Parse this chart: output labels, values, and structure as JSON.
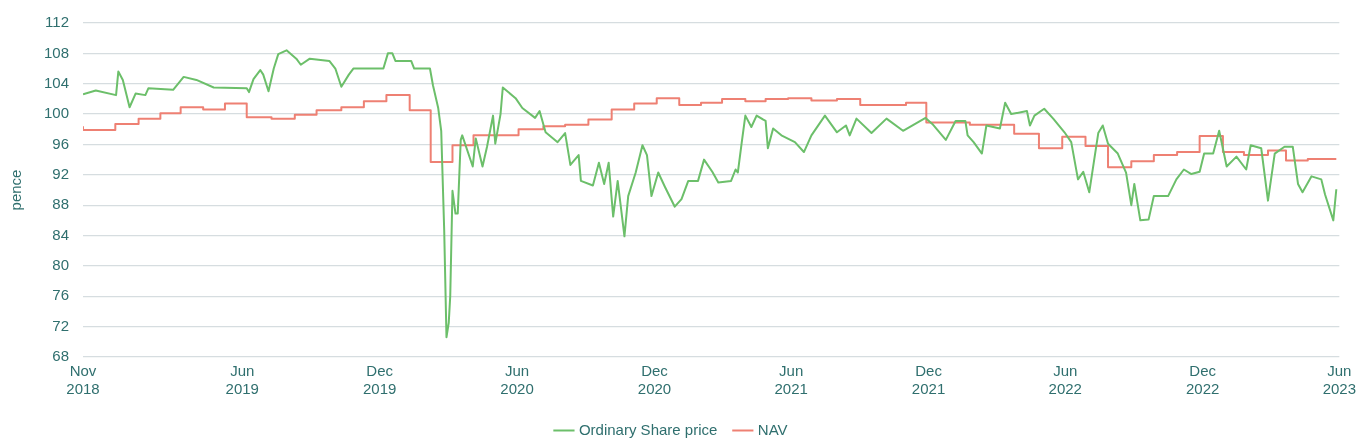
{
  "chart_data": {
    "type": "line",
    "ylabel": "pence",
    "legend": "bottom",
    "grid": "y",
    "marker": "none",
    "xlim": [
      "2018-11-01",
      "2023-06-01"
    ],
    "xticks": [
      {
        "value": "2018-11-01",
        "label": "Nov\n2018"
      },
      {
        "value": "2019-06-01",
        "label": "Jun\n2019"
      },
      {
        "value": "2019-12-01",
        "label": "Dec\n2019"
      },
      {
        "value": "2020-06-01",
        "label": "Jun\n2020"
      },
      {
        "value": "2020-12-01",
        "label": "Dec\n2020"
      },
      {
        "value": "2021-06-01",
        "label": "Jun\n2021"
      },
      {
        "value": "2021-12-01",
        "label": "Dec\n2021"
      },
      {
        "value": "2022-06-01",
        "label": "Jun\n2022"
      },
      {
        "value": "2022-12-01",
        "label": "Dec\n2022"
      },
      {
        "value": "2023-06-01",
        "label": "Jun\n2023"
      }
    ],
    "ylim": [
      68,
      112
    ],
    "yticks": [
      68,
      72,
      76,
      80,
      84,
      88,
      92,
      96,
      100,
      104,
      108,
      112
    ],
    "series": [
      {
        "name": "Ordinary Share price",
        "type": "line",
        "color": "#6cbf6a",
        "x": [
          "2018-11-01",
          "2018-11-18",
          "2018-12-15",
          "2018-12-18",
          "2018-12-24",
          "2019-01-02",
          "2019-01-10",
          "2019-01-23",
          "2019-01-27",
          "2019-03-01",
          "2019-03-15",
          "2019-04-01",
          "2019-04-24",
          "2019-06-07",
          "2019-06-10",
          "2019-06-16",
          "2019-06-25",
          "2019-06-29",
          "2019-07-06",
          "2019-07-13",
          "2019-07-19",
          "2019-07-30",
          "2019-08-12",
          "2019-08-18",
          "2019-08-30",
          "2019-09-25",
          "2019-10-03",
          "2019-10-11",
          "2019-10-21",
          "2019-10-27",
          "2019-12-06",
          "2019-12-12",
          "2019-12-18",
          "2019-12-22",
          "2020-01-12",
          "2020-01-16",
          "2020-02-06",
          "2020-02-10",
          "2020-02-17",
          "2020-02-21",
          "2020-02-25",
          "2020-02-28",
          "2020-03-02",
          "2020-03-04",
          "2020-03-07",
          "2020-03-11",
          "2020-03-14",
          "2020-03-18",
          "2020-03-20",
          "2020-04-03",
          "2020-04-07",
          "2020-04-16",
          "2020-04-22",
          "2020-04-30",
          "2020-05-03",
          "2020-05-10",
          "2020-05-13",
          "2020-05-30",
          "2020-06-08",
          "2020-06-25",
          "2020-07-01",
          "2020-07-09",
          "2020-07-25",
          "2020-08-04",
          "2020-08-11",
          "2020-08-22",
          "2020-08-25",
          "2020-09-10",
          "2020-09-18",
          "2020-09-25",
          "2020-10-01",
          "2020-10-07",
          "2020-10-13",
          "2020-10-22",
          "2020-10-27",
          "2020-11-06",
          "2020-11-15",
          "2020-11-21",
          "2020-11-27",
          "2020-12-06",
          "2020-12-15",
          "2020-12-28",
          "2021-01-06",
          "2021-01-15",
          "2021-01-28",
          "2021-02-05",
          "2021-02-16",
          "2021-02-24",
          "2021-03-13",
          "2021-03-19",
          "2021-03-22",
          "2021-03-27",
          "2021-04-01",
          "2021-04-09",
          "2021-04-16",
          "2021-04-28",
          "2021-05-01",
          "2021-05-08",
          "2021-05-19",
          "2021-06-06",
          "2021-06-18",
          "2021-06-28",
          "2021-07-16",
          "2021-08-01",
          "2021-08-13",
          "2021-08-18",
          "2021-08-27",
          "2021-09-16",
          "2021-10-06",
          "2021-10-28",
          "2021-11-27",
          "2021-12-06",
          "2021-12-24",
          "2022-01-06",
          "2022-01-19",
          "2022-01-22",
          "2022-01-30",
          "2022-02-10",
          "2022-02-16",
          "2022-03-06",
          "2022-03-13",
          "2022-03-21",
          "2022-04-11",
          "2022-04-15",
          "2022-04-21",
          "2022-05-04",
          "2022-05-16",
          "2022-05-31",
          "2022-06-09",
          "2022-06-18",
          "2022-06-25",
          "2022-07-03",
          "2022-07-09",
          "2022-07-15",
          "2022-07-21",
          "2022-07-28",
          "2022-08-10",
          "2022-08-21",
          "2022-08-28",
          "2022-09-01",
          "2022-09-09",
          "2022-09-20",
          "2022-09-27",
          "2022-10-16",
          "2022-10-27",
          "2022-11-06",
          "2022-11-16",
          "2022-11-27",
          "2022-12-03",
          "2022-12-15",
          "2022-12-23",
          "2023-01-02",
          "2023-01-15",
          "2023-01-28",
          "2023-02-03",
          "2023-02-17",
          "2023-02-26",
          "2023-03-07",
          "2023-03-20",
          "2023-03-31",
          "2023-04-07",
          "2023-04-13",
          "2023-04-25",
          "2023-05-08",
          "2023-05-13",
          "2023-05-24",
          "2023-05-28"
        ],
        "values": [
          102.6,
          103.1,
          102.5,
          105.6,
          104.5,
          100.9,
          102.7,
          102.5,
          103.4,
          103.2,
          104.9,
          104.5,
          103.5,
          103.4,
          102.9,
          104.6,
          105.8,
          105.2,
          103.0,
          106.0,
          107.9,
          108.4,
          107.3,
          106.5,
          107.3,
          107.0,
          106.0,
          103.6,
          105.2,
          106.0,
          106.0,
          108.0,
          108.0,
          107.0,
          107.0,
          106.0,
          106.0,
          103.8,
          100.8,
          97.8,
          84.6,
          70.6,
          72.5,
          76.0,
          89.9,
          86.9,
          86.9,
          96.6,
          97.2,
          93.1,
          96.8,
          93.1,
          95.7,
          99.8,
          96.1,
          100.0,
          103.5,
          102.1,
          100.8,
          99.5,
          100.4,
          97.6,
          96.3,
          97.5,
          93.3,
          94.6,
          91.2,
          90.6,
          93.6,
          90.8,
          93.6,
          86.5,
          91.2,
          83.9,
          89.2,
          92.3,
          95.9,
          94.6,
          89.2,
          92.3,
          90.4,
          87.8,
          88.8,
          91.2,
          91.2,
          94.0,
          92.4,
          91.0,
          91.2,
          92.7,
          92.3,
          96.1,
          99.8,
          98.3,
          99.8,
          99.1,
          95.5,
          98.1,
          97.2,
          96.3,
          95.0,
          97.2,
          99.8,
          97.6,
          98.5,
          97.2,
          99.4,
          97.5,
          99.4,
          97.8,
          99.5,
          98.7,
          96.6,
          99.1,
          99.1,
          97.2,
          96.3,
          94.8,
          98.5,
          98.1,
          101.5,
          100.0,
          100.4,
          98.5,
          99.8,
          100.7,
          99.4,
          97.6,
          96.3,
          91.4,
          92.4,
          89.7,
          93.6,
          97.5,
          98.5,
          96.1,
          94.8,
          92.3,
          88.0,
          90.8,
          86.0,
          86.1,
          89.2,
          89.2,
          91.4,
          92.7,
          92.1,
          92.4,
          94.8,
          94.8,
          97.8,
          93.1,
          94.4,
          92.7,
          95.9,
          95.5,
          88.6,
          94.8,
          95.7,
          95.7,
          90.8,
          89.7,
          91.8,
          91.4,
          89.4,
          86.0,
          90.1
        ]
      },
      {
        "name": "NAV",
        "type": "step",
        "color": "#ee8073",
        "x": [
          "2018-11-01",
          "2018-12-14",
          "2019-01-14",
          "2019-02-12",
          "2019-03-11",
          "2019-04-10",
          "2019-05-09",
          "2019-06-07",
          "2019-07-10",
          "2019-08-10",
          "2019-09-08",
          "2019-10-11",
          "2019-11-10",
          "2019-12-10",
          "2020-01-10",
          "2020-02-07",
          "2020-03-07",
          "2020-04-04",
          "2020-06-03",
          "2020-07-06",
          "2020-08-04",
          "2020-09-04",
          "2020-10-05",
          "2020-11-04",
          "2020-12-04",
          "2021-01-03",
          "2021-02-01",
          "2021-03-01",
          "2021-04-01",
          "2021-04-28",
          "2021-05-28",
          "2021-06-28",
          "2021-08-01",
          "2021-09-01",
          "2021-11-01",
          "2021-11-28",
          "2022-01-25",
          "2022-03-25",
          "2022-04-27",
          "2022-05-28",
          "2022-06-28",
          "2022-07-28",
          "2022-08-28",
          "2022-09-27",
          "2022-10-28",
          "2022-11-27",
          "2022-12-28",
          "2023-01-25",
          "2023-02-26",
          "2023-03-22",
          "2023-04-20",
          "2023-05-24",
          "2023-05-28"
        ],
        "values": [
          98.4,
          97.9,
          98.7,
          99.4,
          100.1,
          100.9,
          100.6,
          101.4,
          99.6,
          99.4,
          99.9,
          100.5,
          100.9,
          101.7,
          102.5,
          100.5,
          93.7,
          95.9,
          97.2,
          98.0,
          98.4,
          98.6,
          99.3,
          100.6,
          101.4,
          102.1,
          101.2,
          101.5,
          102.0,
          101.7,
          102.0,
          102.1,
          101.8,
          102.0,
          101.2,
          101.5,
          98.9,
          98.6,
          97.4,
          95.5,
          97.0,
          95.8,
          93.0,
          93.8,
          94.6,
          95.0,
          97.1,
          95.0,
          94.6,
          95.2,
          93.9,
          94.1,
          94.1
        ]
      }
    ]
  }
}
